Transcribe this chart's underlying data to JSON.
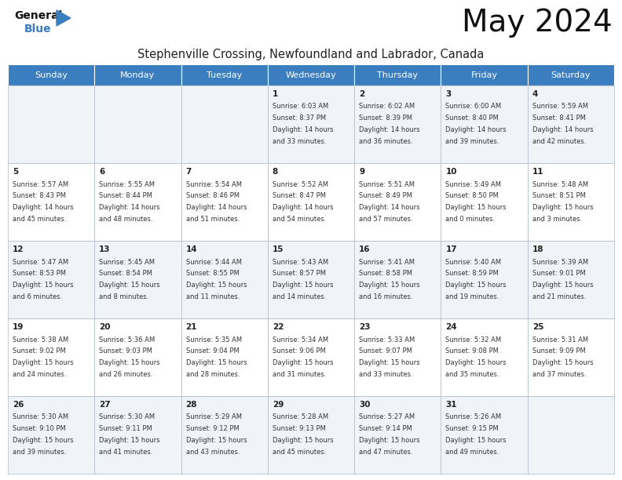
{
  "title": "May 2024",
  "subtitle": "Stephenville Crossing, Newfoundland and Labrador, Canada",
  "header_color": "#3a7ebf",
  "header_text_color": "#ffffff",
  "text_color": "#333333",
  "days_of_week": [
    "Sunday",
    "Monday",
    "Tuesday",
    "Wednesday",
    "Thursday",
    "Friday",
    "Saturday"
  ],
  "calendar_data": [
    [
      {
        "day": "",
        "sunrise": "",
        "sunset": "",
        "daylight": ""
      },
      {
        "day": "",
        "sunrise": "",
        "sunset": "",
        "daylight": ""
      },
      {
        "day": "",
        "sunrise": "",
        "sunset": "",
        "daylight": ""
      },
      {
        "day": "1",
        "sunrise": "6:03 AM",
        "sunset": "8:37 PM",
        "daylight_h": "14 hours",
        "daylight_m": "and 33 minutes."
      },
      {
        "day": "2",
        "sunrise": "6:02 AM",
        "sunset": "8:39 PM",
        "daylight_h": "14 hours",
        "daylight_m": "and 36 minutes."
      },
      {
        "day": "3",
        "sunrise": "6:00 AM",
        "sunset": "8:40 PM",
        "daylight_h": "14 hours",
        "daylight_m": "and 39 minutes."
      },
      {
        "day": "4",
        "sunrise": "5:59 AM",
        "sunset": "8:41 PM",
        "daylight_h": "14 hours",
        "daylight_m": "and 42 minutes."
      }
    ],
    [
      {
        "day": "5",
        "sunrise": "5:57 AM",
        "sunset": "8:43 PM",
        "daylight_h": "14 hours",
        "daylight_m": "and 45 minutes."
      },
      {
        "day": "6",
        "sunrise": "5:55 AM",
        "sunset": "8:44 PM",
        "daylight_h": "14 hours",
        "daylight_m": "and 48 minutes."
      },
      {
        "day": "7",
        "sunrise": "5:54 AM",
        "sunset": "8:46 PM",
        "daylight_h": "14 hours",
        "daylight_m": "and 51 minutes."
      },
      {
        "day": "8",
        "sunrise": "5:52 AM",
        "sunset": "8:47 PM",
        "daylight_h": "14 hours",
        "daylight_m": "and 54 minutes."
      },
      {
        "day": "9",
        "sunrise": "5:51 AM",
        "sunset": "8:49 PM",
        "daylight_h": "14 hours",
        "daylight_m": "and 57 minutes."
      },
      {
        "day": "10",
        "sunrise": "5:49 AM",
        "sunset": "8:50 PM",
        "daylight_h": "15 hours",
        "daylight_m": "and 0 minutes."
      },
      {
        "day": "11",
        "sunrise": "5:48 AM",
        "sunset": "8:51 PM",
        "daylight_h": "15 hours",
        "daylight_m": "and 3 minutes."
      }
    ],
    [
      {
        "day": "12",
        "sunrise": "5:47 AM",
        "sunset": "8:53 PM",
        "daylight_h": "15 hours",
        "daylight_m": "and 6 minutes."
      },
      {
        "day": "13",
        "sunrise": "5:45 AM",
        "sunset": "8:54 PM",
        "daylight_h": "15 hours",
        "daylight_m": "and 8 minutes."
      },
      {
        "day": "14",
        "sunrise": "5:44 AM",
        "sunset": "8:55 PM",
        "daylight_h": "15 hours",
        "daylight_m": "and 11 minutes."
      },
      {
        "day": "15",
        "sunrise": "5:43 AM",
        "sunset": "8:57 PM",
        "daylight_h": "15 hours",
        "daylight_m": "and 14 minutes."
      },
      {
        "day": "16",
        "sunrise": "5:41 AM",
        "sunset": "8:58 PM",
        "daylight_h": "15 hours",
        "daylight_m": "and 16 minutes."
      },
      {
        "day": "17",
        "sunrise": "5:40 AM",
        "sunset": "8:59 PM",
        "daylight_h": "15 hours",
        "daylight_m": "and 19 minutes."
      },
      {
        "day": "18",
        "sunrise": "5:39 AM",
        "sunset": "9:01 PM",
        "daylight_h": "15 hours",
        "daylight_m": "and 21 minutes."
      }
    ],
    [
      {
        "day": "19",
        "sunrise": "5:38 AM",
        "sunset": "9:02 PM",
        "daylight_h": "15 hours",
        "daylight_m": "and 24 minutes."
      },
      {
        "day": "20",
        "sunrise": "5:36 AM",
        "sunset": "9:03 PM",
        "daylight_h": "15 hours",
        "daylight_m": "and 26 minutes."
      },
      {
        "day": "21",
        "sunrise": "5:35 AM",
        "sunset": "9:04 PM",
        "daylight_h": "15 hours",
        "daylight_m": "and 28 minutes."
      },
      {
        "day": "22",
        "sunrise": "5:34 AM",
        "sunset": "9:06 PM",
        "daylight_h": "15 hours",
        "daylight_m": "and 31 minutes."
      },
      {
        "day": "23",
        "sunrise": "5:33 AM",
        "sunset": "9:07 PM",
        "daylight_h": "15 hours",
        "daylight_m": "and 33 minutes."
      },
      {
        "day": "24",
        "sunrise": "5:32 AM",
        "sunset": "9:08 PM",
        "daylight_h": "15 hours",
        "daylight_m": "and 35 minutes."
      },
      {
        "day": "25",
        "sunrise": "5:31 AM",
        "sunset": "9:09 PM",
        "daylight_h": "15 hours",
        "daylight_m": "and 37 minutes."
      }
    ],
    [
      {
        "day": "26",
        "sunrise": "5:30 AM",
        "sunset": "9:10 PM",
        "daylight_h": "15 hours",
        "daylight_m": "and 39 minutes."
      },
      {
        "day": "27",
        "sunrise": "5:30 AM",
        "sunset": "9:11 PM",
        "daylight_h": "15 hours",
        "daylight_m": "and 41 minutes."
      },
      {
        "day": "28",
        "sunrise": "5:29 AM",
        "sunset": "9:12 PM",
        "daylight_h": "15 hours",
        "daylight_m": "and 43 minutes."
      },
      {
        "day": "29",
        "sunrise": "5:28 AM",
        "sunset": "9:13 PM",
        "daylight_h": "15 hours",
        "daylight_m": "and 45 minutes."
      },
      {
        "day": "30",
        "sunrise": "5:27 AM",
        "sunset": "9:14 PM",
        "daylight_h": "15 hours",
        "daylight_m": "and 47 minutes."
      },
      {
        "day": "31",
        "sunrise": "5:26 AM",
        "sunset": "9:15 PM",
        "daylight_h": "15 hours",
        "daylight_m": "and 49 minutes."
      },
      {
        "day": "",
        "sunrise": "",
        "sunset": "",
        "daylight_h": "",
        "daylight_m": ""
      }
    ]
  ],
  "bg_color": "#ffffff"
}
